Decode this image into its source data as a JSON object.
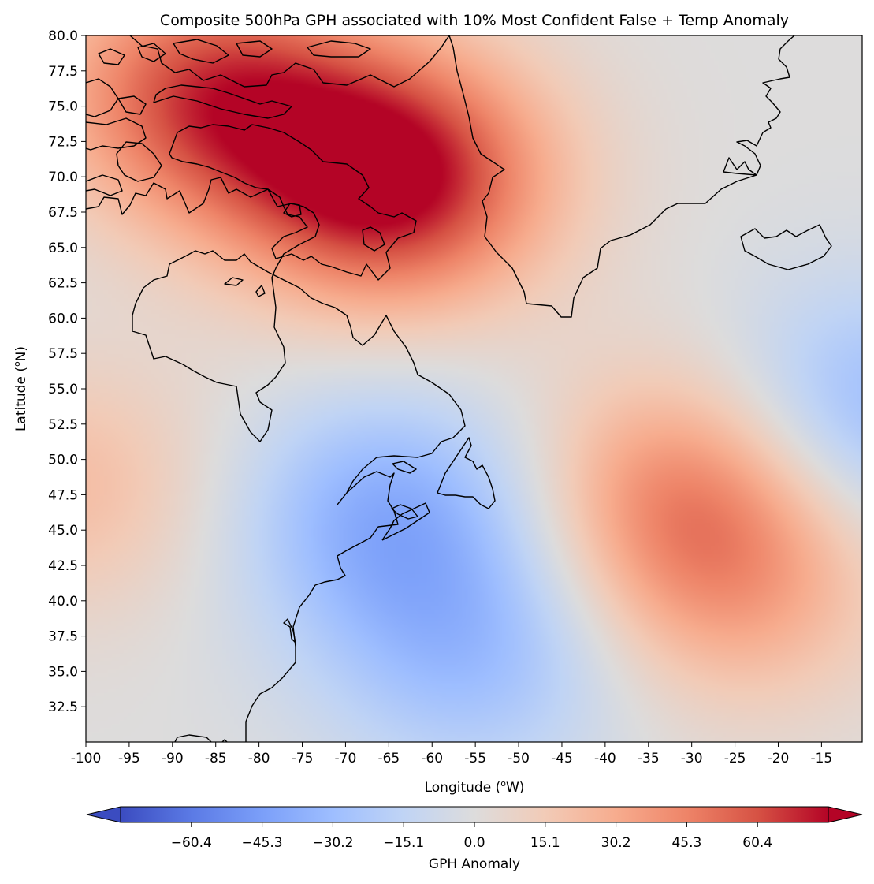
{
  "title": "Composite 500hPa GPH associated with 10% Most Confident False + Temp Anomaly",
  "x_axis": {
    "label_prefix": "Longitude (",
    "label_sup": "o",
    "label_suffix": "W)",
    "ticks": [
      "-100",
      "-95",
      "-90",
      "-85",
      "-80",
      "-75",
      "-70",
      "-65",
      "-60",
      "-55",
      "-50",
      "-45",
      "-40",
      "-35",
      "-30",
      "-25",
      "-20",
      "-15"
    ],
    "tick_values": [
      -100,
      -95,
      -90,
      -85,
      -80,
      -75,
      -70,
      -65,
      -60,
      -55,
      -50,
      -45,
      -40,
      -35,
      -30,
      -25,
      -20,
      -15
    ],
    "range": [
      -100,
      -10.3
    ]
  },
  "y_axis": {
    "label_prefix": "Latitude (",
    "label_sup": "o",
    "label_suffix": "N)",
    "ticks": [
      "32.5",
      "35.0",
      "37.5",
      "40.0",
      "42.5",
      "45.0",
      "47.5",
      "50.0",
      "52.5",
      "55.0",
      "57.5",
      "60.0",
      "62.5",
      "65.0",
      "67.5",
      "70.0",
      "72.5",
      "75.0",
      "77.5",
      "80.0"
    ],
    "tick_values": [
      32.5,
      35,
      37.5,
      40,
      42.5,
      45,
      47.5,
      50,
      52.5,
      55,
      57.5,
      60,
      62.5,
      65,
      67.5,
      70,
      72.5,
      75,
      77.5,
      80
    ],
    "range": [
      30,
      80
    ]
  },
  "colorbar": {
    "label": "GPH Anomaly",
    "ticks": [
      "−60.4",
      "−45.3",
      "−30.2",
      "−15.1",
      "0.0",
      "15.1",
      "30.2",
      "45.3",
      "60.4"
    ],
    "tick_values": [
      -60.4,
      -45.3,
      -30.2,
      -15.1,
      0,
      15.1,
      30.2,
      45.3,
      60.4
    ],
    "range": [
      -75.5,
      75.5
    ],
    "colormap": "coolwarm",
    "extend": "both",
    "colors": [
      "#3b4cc0",
      "#5b7ae5",
      "#7b9ff9",
      "#9ebeff",
      "#c0d4f5",
      "#dddcdc",
      "#f2cbb7",
      "#f7ac8e",
      "#ee8468",
      "#d65244",
      "#b40426"
    ]
  },
  "map": {
    "projection": "plate carree",
    "coastlines": "black",
    "field_features": [
      {
        "lon": -65,
        "lat": 70,
        "value": 80
      },
      {
        "lon": -86,
        "lat": 76,
        "value": 60
      },
      {
        "lon": -30,
        "lat": 48,
        "value": 40
      },
      {
        "lon": -25,
        "lat": 41,
        "value": 28
      },
      {
        "lon": -102,
        "lat": 48,
        "value": 22
      },
      {
        "lon": -65,
        "lat": 46,
        "value": -38
      },
      {
        "lon": -55,
        "lat": 36,
        "value": -28
      },
      {
        "lon": -10,
        "lat": 53,
        "value": -35
      }
    ]
  }
}
